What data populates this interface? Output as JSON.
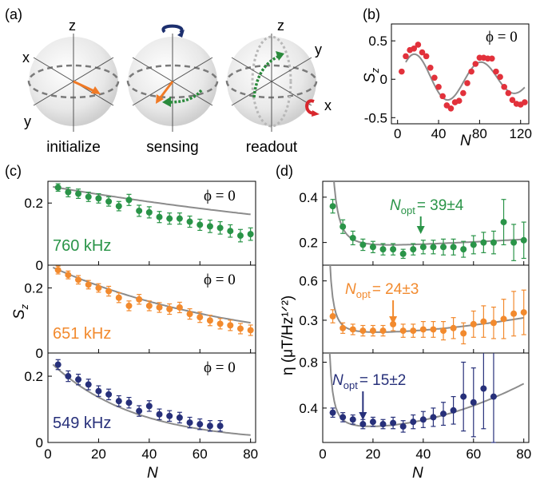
{
  "panel_labels": {
    "a": "(a)",
    "b": "(b)",
    "c": "(c)",
    "d": "(d)"
  },
  "colors": {
    "green": "#2a9448",
    "orange": "#f28a2e",
    "navy": "#27307a",
    "red": "#e2313b",
    "fit": "#8c8c8c",
    "arrow_orange": "#f07a26",
    "arrow_green": "#2a8a3c",
    "rot_blue": "#1c2f6e",
    "rot_red": "#d8262c"
  },
  "bloch": {
    "spheres": [
      {
        "caption": "initialize",
        "axes": [
          "z",
          "x",
          "y"
        ]
      },
      {
        "caption": "sensing",
        "axes": [
          "",
          "",
          ""
        ]
      },
      {
        "caption": "readout",
        "axes": [
          "z",
          "y",
          "x"
        ]
      }
    ]
  },
  "chart_data": [
    {
      "id": "b",
      "type": "scatter",
      "annotation": "ϕ = 0",
      "xlabel": "N",
      "ylabel": "S",
      "ylabel_sub": "z",
      "xlim": [
        -6,
        128
      ],
      "ylim": [
        -0.58,
        0.72
      ],
      "xticks": [
        "0",
        "40",
        "80",
        "120"
      ],
      "xtick_values": [
        0,
        40,
        80,
        120
      ],
      "yticks": [
        "0.5",
        "0",
        "-0.5"
      ],
      "ytick_values": [
        0.5,
        0,
        -0.5
      ],
      "series": [
        {
          "x": [
            4,
            8,
            12,
            16,
            20,
            24,
            28,
            32,
            36,
            40,
            44,
            48,
            52,
            56,
            60,
            64,
            68,
            72,
            76,
            80,
            84,
            88,
            92,
            96,
            100,
            104,
            108,
            112,
            116,
            120,
            124
          ],
          "y": [
            0.1,
            0.3,
            0.38,
            0.4,
            0.45,
            0.35,
            0.3,
            0.15,
            0.02,
            -0.1,
            -0.22,
            -0.34,
            -0.38,
            -0.3,
            -0.28,
            -0.18,
            -0.05,
            0.1,
            0.2,
            0.28,
            0.28,
            0.27,
            0.27,
            0.1,
            0.03,
            -0.1,
            -0.18,
            -0.27,
            -0.32,
            -0.33,
            -0.3
          ]
        }
      ]
    },
    {
      "id": "c",
      "type": "scatter",
      "xlabel": "N",
      "ylabel": "S",
      "ylabel_sub": "z",
      "xlim": [
        0,
        82
      ],
      "xticks": [
        "0",
        "20",
        "40",
        "60",
        "80"
      ],
      "xtick_values": [
        0,
        20,
        40,
        60,
        80
      ],
      "subplots": [
        {
          "label": "760 kHz",
          "annotation": "ϕ = 0",
          "ylim": [
            0,
            0.27
          ],
          "yticks": [
            "0.2",
            "0"
          ],
          "ytick_values": [
            0.2,
            0
          ],
          "x": [
            4,
            8,
            12,
            16,
            20,
            24,
            28,
            32,
            36,
            40,
            44,
            48,
            52,
            56,
            60,
            64,
            68,
            72,
            76,
            80
          ],
          "y": [
            0.25,
            0.235,
            0.23,
            0.22,
            0.215,
            0.205,
            0.19,
            0.21,
            0.175,
            0.17,
            0.155,
            0.15,
            0.15,
            0.14,
            0.13,
            0.125,
            0.12,
            0.11,
            0.095,
            0.1
          ],
          "err": [
            0.012,
            0.015,
            0.015,
            0.015,
            0.015,
            0.015,
            0.015,
            0.018,
            0.018,
            0.018,
            0.018,
            0.018,
            0.018,
            0.018,
            0.018,
            0.02,
            0.02,
            0.02,
            0.02,
            0.02
          ]
        },
        {
          "label": "651 kHz",
          "annotation": "ϕ = 0",
          "ylim": [
            0,
            0.27
          ],
          "yticks": [
            "0.2",
            "0"
          ],
          "ytick_values": [
            0.2,
            0
          ],
          "x": [
            4,
            8,
            12,
            16,
            20,
            24,
            28,
            32,
            36,
            40,
            44,
            48,
            52,
            56,
            60,
            64,
            68,
            72,
            76,
            80
          ],
          "y": [
            0.255,
            0.24,
            0.225,
            0.21,
            0.2,
            0.19,
            0.17,
            0.145,
            0.165,
            0.145,
            0.14,
            0.135,
            0.14,
            0.12,
            0.11,
            0.1,
            0.09,
            0.085,
            0.075,
            0.07
          ],
          "err": [
            0.012,
            0.012,
            0.013,
            0.013,
            0.013,
            0.015,
            0.015,
            0.015,
            0.015,
            0.015,
            0.015,
            0.016,
            0.016,
            0.016,
            0.016,
            0.016,
            0.016,
            0.016,
            0.016,
            0.016
          ]
        },
        {
          "label": "549 kHz",
          "annotation": "ϕ = 0",
          "ylim": [
            0,
            0.27
          ],
          "yticks": [
            "0.2",
            "0"
          ],
          "ytick_values": [
            0.2,
            0
          ],
          "x": [
            4,
            8,
            12,
            16,
            20,
            24,
            28,
            32,
            36,
            40,
            44,
            48,
            52,
            56,
            60,
            64,
            68
          ],
          "y": [
            0.235,
            0.2,
            0.19,
            0.175,
            0.155,
            0.145,
            0.125,
            0.12,
            0.095,
            0.11,
            0.085,
            0.08,
            0.075,
            0.06,
            0.055,
            0.05,
            0.05
          ],
          "err": [
            0.015,
            0.016,
            0.016,
            0.016,
            0.016,
            0.016,
            0.016,
            0.016,
            0.016,
            0.016,
            0.016,
            0.016,
            0.016,
            0.016,
            0.016,
            0.016,
            0.016
          ]
        }
      ]
    },
    {
      "id": "d",
      "type": "scatter",
      "xlabel": "N",
      "ylabel": "η (μT/Hz¹ᐟ²)",
      "xlim": [
        0,
        82
      ],
      "xticks": [
        "0",
        "20",
        "40",
        "60",
        "80"
      ],
      "xtick_values": [
        0,
        20,
        40,
        60,
        80
      ],
      "subplots": [
        {
          "annotation_name": "N",
          "annotation_sub": "opt",
          "annotation_value": "= 39±4",
          "arrow_x": 39,
          "ylim": [
            0.1,
            0.47
          ],
          "yticks": [
            "0.4",
            "0.2"
          ],
          "ytick_values": [
            0.4,
            0.2
          ],
          "x": [
            4,
            8,
            12,
            16,
            20,
            24,
            28,
            32,
            36,
            40,
            44,
            48,
            52,
            56,
            60,
            64,
            68,
            72,
            76,
            80
          ],
          "y": [
            0.36,
            0.27,
            0.22,
            0.19,
            0.18,
            0.17,
            0.17,
            0.15,
            0.17,
            0.18,
            0.18,
            0.18,
            0.18,
            0.17,
            0.19,
            0.2,
            0.2,
            0.29,
            0.2,
            0.21
          ],
          "err": [
            0.03,
            0.03,
            0.03,
            0.025,
            0.025,
            0.025,
            0.025,
            0.02,
            0.025,
            0.03,
            0.03,
            0.035,
            0.035,
            0.035,
            0.04,
            0.045,
            0.05,
            0.1,
            0.08,
            0.08
          ]
        },
        {
          "annotation_name": "N",
          "annotation_sub": "opt",
          "annotation_value": "= 24±3",
          "arrow_x": 28,
          "ylim": [
            0.05,
            0.72
          ],
          "yticks": [
            "0.6",
            "0.3"
          ],
          "ytick_values": [
            0.6,
            0.3
          ],
          "x": [
            4,
            8,
            12,
            16,
            20,
            24,
            28,
            32,
            36,
            40,
            44,
            48,
            52,
            56,
            60,
            64,
            68,
            72,
            76,
            80
          ],
          "y": [
            0.33,
            0.24,
            0.23,
            0.22,
            0.22,
            0.22,
            0.27,
            0.22,
            0.22,
            0.23,
            0.23,
            0.22,
            0.24,
            0.2,
            0.27,
            0.29,
            0.28,
            0.31,
            0.35,
            0.36
          ],
          "err": [
            0.05,
            0.04,
            0.04,
            0.04,
            0.04,
            0.04,
            0.05,
            0.05,
            0.05,
            0.06,
            0.06,
            0.07,
            0.08,
            0.08,
            0.1,
            0.12,
            0.12,
            0.15,
            0.17,
            0.17
          ]
        },
        {
          "annotation_name": "N",
          "annotation_sub": "opt",
          "annotation_value": "= 15±2",
          "arrow_x": 16,
          "ylim": [
            0.1,
            0.88
          ],
          "yticks": [
            "0.8",
            "0.4"
          ],
          "ytick_values": [
            0.8,
            0.4
          ],
          "x": [
            4,
            8,
            12,
            16,
            20,
            24,
            28,
            32,
            36,
            40,
            44,
            48,
            52,
            56,
            60,
            64,
            68
          ],
          "y": [
            0.36,
            0.32,
            0.3,
            0.26,
            0.28,
            0.26,
            0.27,
            0.24,
            0.28,
            0.3,
            0.32,
            0.35,
            0.38,
            0.5,
            0.45,
            0.57,
            0.5
          ],
          "err": [
            0.04,
            0.04,
            0.04,
            0.04,
            0.04,
            0.04,
            0.05,
            0.05,
            0.06,
            0.07,
            0.08,
            0.1,
            0.12,
            0.3,
            0.3,
            0.35,
            0.4
          ]
        }
      ]
    }
  ]
}
